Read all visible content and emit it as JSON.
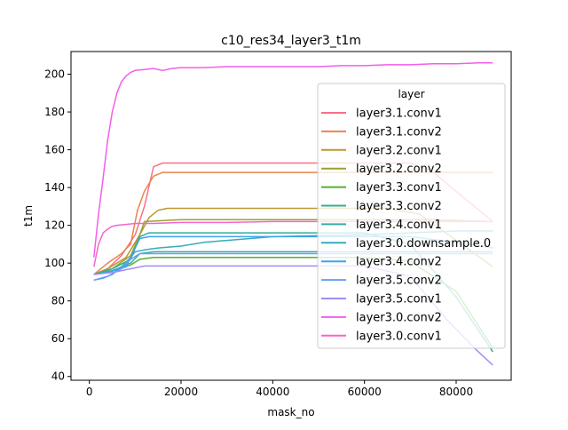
{
  "chart_data": {
    "type": "line",
    "title": "c10_res34_layer3_t1m",
    "xlabel": "mask_no",
    "ylabel": "t1m",
    "xlim": [
      -4000,
      92000
    ],
    "ylim": [
      38,
      212
    ],
    "xticks": [
      0,
      20000,
      40000,
      60000,
      80000
    ],
    "xtick_labels": [
      "0",
      "20000",
      "40000",
      "60000",
      "80000"
    ],
    "yticks": [
      40,
      60,
      80,
      100,
      120,
      140,
      160,
      180,
      200
    ],
    "ytick_labels": [
      "40",
      "60",
      "80",
      "100",
      "120",
      "140",
      "160",
      "180",
      "200"
    ],
    "grid": false,
    "legend": {
      "title": "layer",
      "placement": "upper-right"
    },
    "series": [
      {
        "name": "layer3.1.conv1",
        "color": "#f77189",
        "points": [
          [
            1000,
            94
          ],
          [
            4000,
            97
          ],
          [
            7000,
            104
          ],
          [
            10000,
            115
          ],
          [
            12000,
            130
          ],
          [
            14000,
            151
          ],
          [
            16000,
            153
          ],
          [
            20000,
            153
          ],
          [
            40000,
            153
          ],
          [
            60000,
            153
          ],
          [
            70000,
            153
          ],
          [
            75000,
            148
          ],
          [
            80000,
            138
          ],
          [
            88000,
            122
          ]
        ]
      },
      {
        "name": "layer3.1.conv2",
        "color": "#e7854a",
        "points": [
          [
            1000,
            94
          ],
          [
            4000,
            100
          ],
          [
            7000,
            105
          ],
          [
            9000,
            110
          ],
          [
            10500,
            128
          ],
          [
            12000,
            138
          ],
          [
            14000,
            146
          ],
          [
            16000,
            148
          ],
          [
            30000,
            148
          ],
          [
            60000,
            148
          ],
          [
            88000,
            148
          ]
        ]
      },
      {
        "name": "layer3.2.conv1",
        "color": "#bb9832",
        "points": [
          [
            1000,
            94
          ],
          [
            4000,
            97
          ],
          [
            8000,
            103
          ],
          [
            11000,
            115
          ],
          [
            13000,
            124
          ],
          [
            15000,
            128
          ],
          [
            17000,
            129
          ],
          [
            40000,
            129
          ],
          [
            65000,
            129
          ],
          [
            72000,
            126
          ],
          [
            80000,
            112
          ],
          [
            88000,
            98
          ]
        ]
      },
      {
        "name": "layer3.2.conv2",
        "color": "#99a233",
        "points": [
          [
            1000,
            94
          ],
          [
            5000,
            97
          ],
          [
            9000,
            104
          ],
          [
            11000,
            115
          ],
          [
            12000,
            122
          ],
          [
            20000,
            123
          ],
          [
            40000,
            123
          ],
          [
            60000,
            123
          ],
          [
            75000,
            123
          ],
          [
            88000,
            122
          ]
        ]
      },
      {
        "name": "layer3.3.conv1",
        "color": "#50b131",
        "points": [
          [
            1000,
            94
          ],
          [
            5000,
            96
          ],
          [
            9000,
            99
          ],
          [
            11000,
            102
          ],
          [
            14000,
            103
          ],
          [
            40000,
            103
          ],
          [
            60000,
            103
          ],
          [
            70000,
            101
          ],
          [
            80000,
            85
          ],
          [
            88000,
            55
          ]
        ]
      },
      {
        "name": "layer3.3.conv2",
        "color": "#34ae91",
        "points": [
          [
            1000,
            94
          ],
          [
            5000,
            97
          ],
          [
            9000,
            102
          ],
          [
            11000,
            114
          ],
          [
            13000,
            116
          ],
          [
            40000,
            116
          ],
          [
            60000,
            116
          ],
          [
            70000,
            110
          ],
          [
            80000,
            82
          ],
          [
            88000,
            53
          ]
        ]
      },
      {
        "name": "layer3.4.conv1",
        "color": "#36ada4",
        "points": [
          [
            1000,
            94
          ],
          [
            5000,
            96
          ],
          [
            9000,
            100
          ],
          [
            11000,
            105
          ],
          [
            14000,
            106
          ],
          [
            40000,
            106
          ],
          [
            60000,
            106
          ],
          [
            70000,
            106
          ],
          [
            80000,
            106
          ],
          [
            88000,
            106
          ]
        ]
      },
      {
        "name": "layer3.0.downsample.0",
        "color": "#38aabf",
        "points": [
          [
            1000,
            91
          ],
          [
            3000,
            92
          ],
          [
            5000,
            94
          ],
          [
            7000,
            98
          ],
          [
            9000,
            103
          ],
          [
            10000,
            106
          ],
          [
            12000,
            107
          ],
          [
            15000,
            108
          ],
          [
            20000,
            109
          ],
          [
            25000,
            111
          ],
          [
            30000,
            112
          ],
          [
            40000,
            114
          ],
          [
            50000,
            114.5
          ],
          [
            60000,
            115
          ],
          [
            70000,
            116
          ],
          [
            80000,
            117
          ],
          [
            88000,
            117
          ]
        ]
      },
      {
        "name": "layer3.4.conv2",
        "color": "#3ba3ec",
        "points": [
          [
            1000,
            94
          ],
          [
            4000,
            95
          ],
          [
            8000,
            98
          ],
          [
            11000,
            113
          ],
          [
            13000,
            114
          ],
          [
            40000,
            114
          ],
          [
            60000,
            114
          ],
          [
            70000,
            114
          ],
          [
            80000,
            111
          ],
          [
            88000,
            108
          ]
        ]
      },
      {
        "name": "layer3.5.conv2",
        "color": "#6c9ef5",
        "points": [
          [
            1000,
            91
          ],
          [
            4000,
            93
          ],
          [
            7000,
            97
          ],
          [
            9000,
            102
          ],
          [
            11000,
            105
          ],
          [
            40000,
            105
          ],
          [
            60000,
            105
          ],
          [
            88000,
            105
          ]
        ]
      },
      {
        "name": "layer3.5.conv1",
        "color": "#a48cf4",
        "points": [
          [
            1000,
            94
          ],
          [
            5000,
            95
          ],
          [
            9000,
            97
          ],
          [
            12000,
            98.5
          ],
          [
            40000,
            98.5
          ],
          [
            60000,
            98.5
          ],
          [
            70000,
            93
          ],
          [
            78000,
            70
          ],
          [
            84000,
            55
          ],
          [
            88000,
            46
          ]
        ]
      },
      {
        "name": "layer3.0.conv2",
        "color": "#f45deb",
        "points": [
          [
            1000,
            103
          ],
          [
            2000,
            126
          ],
          [
            3000,
            145
          ],
          [
            4000,
            165
          ],
          [
            5000,
            180
          ],
          [
            6000,
            190
          ],
          [
            7000,
            196
          ],
          [
            8000,
            199
          ],
          [
            9000,
            201
          ],
          [
            10000,
            202
          ],
          [
            12000,
            202.5
          ],
          [
            14000,
            203
          ],
          [
            16000,
            202
          ],
          [
            18000,
            203
          ],
          [
            20000,
            203.5
          ],
          [
            25000,
            203.5
          ],
          [
            30000,
            204
          ],
          [
            35000,
            204
          ],
          [
            40000,
            204
          ],
          [
            45000,
            204
          ],
          [
            50000,
            204
          ],
          [
            55000,
            204.5
          ],
          [
            60000,
            204.5
          ],
          [
            65000,
            205
          ],
          [
            70000,
            205
          ],
          [
            75000,
            205.5
          ],
          [
            80000,
            205.5
          ],
          [
            85000,
            206
          ],
          [
            88000,
            206
          ]
        ]
      },
      {
        "name": "layer3.0.conv1",
        "color": "#f565cc",
        "points": [
          [
            1000,
            98
          ],
          [
            2000,
            110
          ],
          [
            3000,
            116
          ],
          [
            4000,
            118
          ],
          [
            5000,
            119.5
          ],
          [
            6000,
            120
          ],
          [
            8000,
            120.5
          ],
          [
            10000,
            121
          ],
          [
            14000,
            121
          ],
          [
            20000,
            121.5
          ],
          [
            30000,
            121.5
          ],
          [
            40000,
            122
          ],
          [
            50000,
            122
          ],
          [
            60000,
            122
          ],
          [
            70000,
            122
          ],
          [
            80000,
            122
          ],
          [
            88000,
            122
          ]
        ]
      }
    ]
  }
}
